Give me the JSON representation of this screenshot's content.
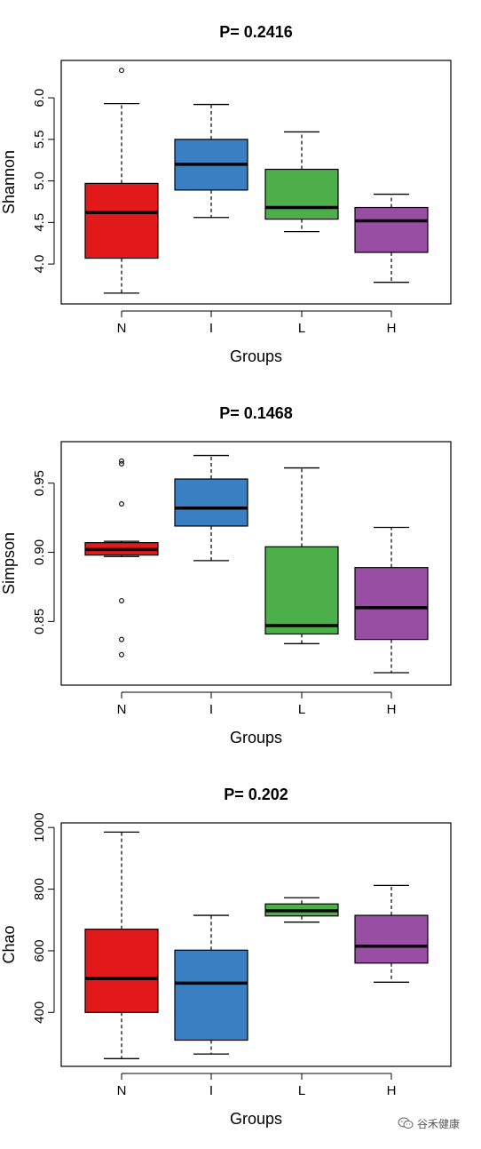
{
  "colors": {
    "N": "#e31a1c",
    "I": "#3a7fc1",
    "L": "#4daf4a",
    "H": "#984ea3",
    "border": "#000000"
  },
  "watermark": {
    "text": "谷禾健康",
    "icon": "wechat-icon"
  },
  "chart_data": [
    {
      "type": "boxplot",
      "title": "P= 0.2416",
      "xlabel": "Groups",
      "ylabel": "Shannon",
      "categories": [
        "N",
        "I",
        "L",
        "H"
      ],
      "yticks": [
        4.0,
        4.5,
        5.0,
        5.5,
        6.0
      ],
      "ytick_labels": [
        "4.0",
        "4.5",
        "5.0",
        "5.5",
        "6.0"
      ],
      "ylim": [
        3.52,
        6.45
      ],
      "boxes": [
        {
          "group": "N",
          "whisker_low": 3.65,
          "q1": 4.07,
          "median": 4.62,
          "q3": 4.97,
          "whisker_high": 5.93,
          "outliers": [
            6.33
          ]
        },
        {
          "group": "I",
          "whisker_low": 4.56,
          "q1": 4.89,
          "median": 5.2,
          "q3": 5.5,
          "whisker_high": 5.92,
          "outliers": []
        },
        {
          "group": "L",
          "whisker_low": 4.39,
          "q1": 4.54,
          "median": 4.68,
          "q3": 5.14,
          "whisker_high": 5.59,
          "outliers": []
        },
        {
          "group": "H",
          "whisker_low": 3.78,
          "q1": 4.14,
          "median": 4.52,
          "q3": 4.68,
          "whisker_high": 4.84,
          "outliers": []
        }
      ]
    },
    {
      "type": "boxplot",
      "title": "P= 0.1468",
      "xlabel": "Groups",
      "ylabel": "Simpson",
      "categories": [
        "N",
        "I",
        "L",
        "H"
      ],
      "yticks": [
        0.85,
        0.9,
        0.95
      ],
      "ytick_labels": [
        "0.85",
        "0.90",
        "0.95"
      ],
      "ylim": [
        0.804,
        0.98
      ],
      "boxes": [
        {
          "group": "N",
          "whisker_low": 0.897,
          "q1": 0.898,
          "median": 0.902,
          "q3": 0.907,
          "whisker_high": 0.908,
          "outliers": [
            0.826,
            0.837,
            0.865,
            0.935,
            0.964,
            0.966
          ]
        },
        {
          "group": "I",
          "whisker_low": 0.894,
          "q1": 0.919,
          "median": 0.932,
          "q3": 0.953,
          "whisker_high": 0.97,
          "outliers": []
        },
        {
          "group": "L",
          "whisker_low": 0.834,
          "q1": 0.841,
          "median": 0.847,
          "q3": 0.904,
          "whisker_high": 0.961,
          "outliers": []
        },
        {
          "group": "H",
          "whisker_low": 0.813,
          "q1": 0.837,
          "median": 0.86,
          "q3": 0.889,
          "whisker_high": 0.918,
          "outliers": []
        }
      ]
    },
    {
      "type": "boxplot",
      "title": "P= 0.202",
      "xlabel": "Groups",
      "ylabel": "Chao",
      "categories": [
        "N",
        "I",
        "L",
        "H"
      ],
      "yticks": [
        400,
        600,
        800,
        1000
      ],
      "ytick_labels": [
        "400",
        "600",
        "800",
        "1000"
      ],
      "ylim": [
        225,
        1015
      ],
      "boxes": [
        {
          "group": "N",
          "whisker_low": 250,
          "q1": 400,
          "median": 510,
          "q3": 670,
          "whisker_high": 985,
          "outliers": []
        },
        {
          "group": "I",
          "whisker_low": 265,
          "q1": 310,
          "median": 495,
          "q3": 602,
          "whisker_high": 715,
          "outliers": []
        },
        {
          "group": "L",
          "whisker_low": 693,
          "q1": 713,
          "median": 730,
          "q3": 752,
          "whisker_high": 772,
          "outliers": []
        },
        {
          "group": "H",
          "whisker_low": 498,
          "q1": 560,
          "median": 615,
          "q3": 715,
          "whisker_high": 812,
          "outliers": []
        }
      ]
    }
  ]
}
